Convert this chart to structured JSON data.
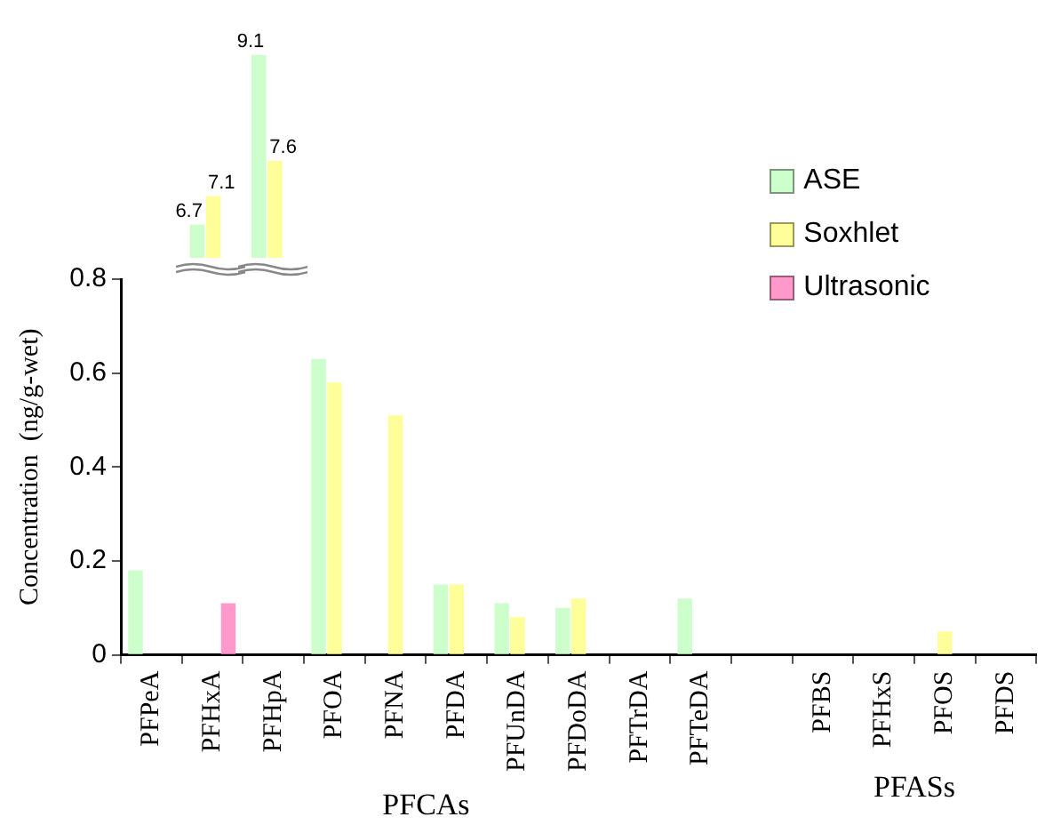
{
  "chart_data": [
    {
      "type": "bar",
      "categories": [
        "PFHxA",
        "PFHpA"
      ],
      "series": [
        {
          "color": "#ccffcc",
          "values": [
            6.7,
            9.1
          ]
        },
        {
          "color": "#ffff99",
          "values": [
            7.1,
            7.6
          ]
        }
      ],
      "data_labels": true,
      "tick_labels": false,
      "grid": false
    },
    {
      "type": "bar",
      "ylabel": "Concentration  (ng/g-wet)",
      "categories": [
        "PFPeA",
        "PFHxA",
        "PFHpA",
        "PFOA",
        "PFNA",
        "PFDA",
        "PFUnDA",
        "PFDoDA",
        "PFTrDA",
        "PFTeDA",
        null,
        "PFBS",
        "PFHxS",
        "PFOS",
        "PFDS"
      ],
      "series": [
        {
          "name": "ASE",
          "color": "#ccffcc",
          "values": [
            0.18,
            null,
            null,
            0.63,
            null,
            0.15,
            0.11,
            0.1,
            null,
            0.12,
            null,
            null,
            null,
            null,
            null
          ]
        },
        {
          "name": "Soxhlet",
          "color": "#ffff99",
          "values": [
            null,
            null,
            null,
            0.58,
            0.51,
            0.15,
            0.08,
            0.12,
            null,
            null,
            null,
            null,
            null,
            0.05,
            null
          ]
        },
        {
          "name": "Ultrasonic",
          "color": "#ff99cc",
          "values": [
            null,
            0.11,
            null,
            null,
            null,
            null,
            null,
            null,
            null,
            null,
            null,
            null,
            null,
            null,
            null
          ]
        }
      ],
      "ylim": [
        0,
        0.8
      ],
      "yticks": [
        0,
        0.2,
        0.4,
        0.6,
        0.8
      ],
      "grid": false,
      "legend": "top right",
      "annotations": [
        "PFCAs",
        "PFASs"
      ]
    }
  ]
}
